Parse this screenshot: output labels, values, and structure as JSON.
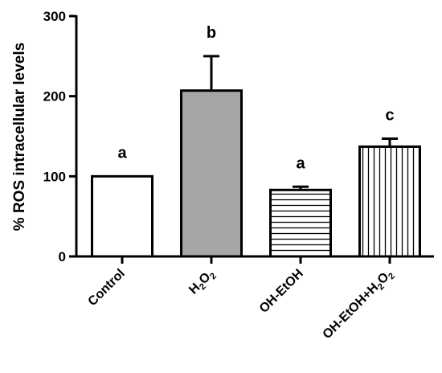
{
  "chart_data": {
    "type": "bar",
    "ylabel": "% ROS intracellular levels",
    "xlabel": "",
    "ylim": [
      0,
      300
    ],
    "yticks": [
      0,
      100,
      200,
      300
    ],
    "categories": [
      "Control",
      "H2O2",
      "OH-EtOH",
      "OH-EtOH+H2O2"
    ],
    "category_labels": [
      {
        "parts": [
          {
            "t": "Control"
          }
        ]
      },
      {
        "parts": [
          {
            "t": "H"
          },
          {
            "t": "2",
            "sub": true
          },
          {
            "t": "O"
          },
          {
            "t": "2",
            "sub": true
          }
        ]
      },
      {
        "parts": [
          {
            "t": "OH-EtOH"
          }
        ]
      },
      {
        "parts": [
          {
            "t": "OH-EtOH+H"
          },
          {
            "t": "2",
            "sub": true
          },
          {
            "t": "O"
          },
          {
            "t": "2",
            "sub": true
          }
        ]
      }
    ],
    "values": [
      100,
      207,
      83,
      137
    ],
    "errors": [
      0,
      43,
      4,
      10
    ],
    "significance": [
      "a",
      "b",
      "a",
      "c"
    ],
    "fills": [
      "white",
      "gray",
      "horizontal-lines",
      "vertical-lines"
    ],
    "colors": {
      "gray": "#a6a6a6",
      "stroke": "#000000"
    },
    "grid": false,
    "legend": "none"
  }
}
